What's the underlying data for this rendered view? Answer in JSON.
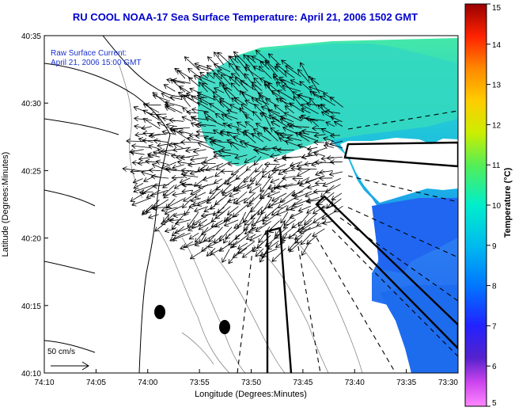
{
  "title": "RU COOL  NOAA-17  Sea Surface Temperature:  April 21, 2006 1502 GMT",
  "annotation": {
    "line1": "Raw Surface Current:",
    "line2": "April 21, 2006 15:00 GMT"
  },
  "scale_label": "50 cm/s",
  "axes": {
    "xlabel": "Longitude (Degrees:Minutes)",
    "ylabel": "Latitude (Degrees:Minutes)",
    "x_ticks": [
      "74:10",
      "74:05",
      "74:00",
      "73:55",
      "73:50",
      "73:45",
      "73:40",
      "73:35",
      "73:30"
    ],
    "y_ticks": [
      "40:35",
      "40:30",
      "40:25",
      "40:20",
      "40:15",
      "40:10"
    ]
  },
  "colorbar": {
    "label": "Temperature (°C)",
    "ticks": [
      "15",
      "14",
      "13",
      "12",
      "11",
      "10",
      "9",
      "8",
      "7",
      "6",
      "5"
    ],
    "range": [
      5,
      15
    ]
  },
  "colors": {
    "title": "#0000cc",
    "land": "#ffffff",
    "vectors": "#000000"
  }
}
